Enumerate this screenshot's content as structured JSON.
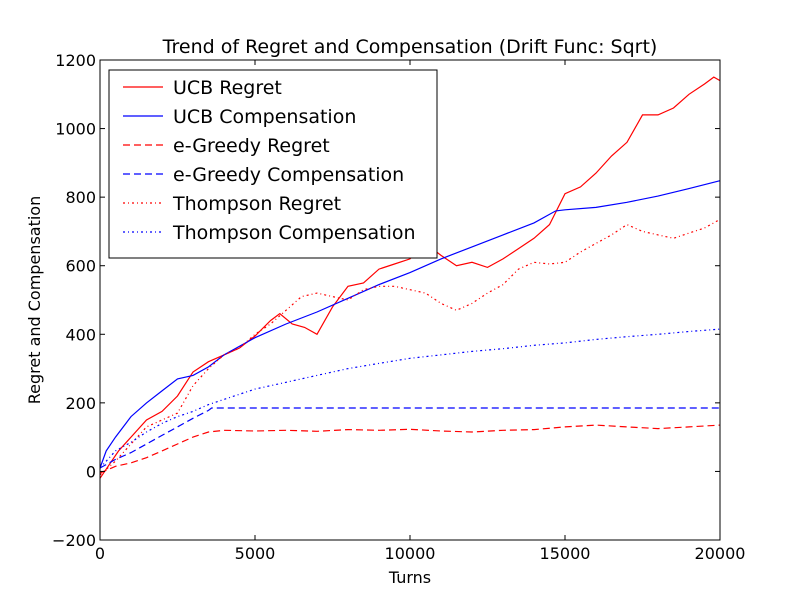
{
  "chart_data": {
    "type": "line",
    "title": "Trend of Regret and Compensation (Drift Func: Sqrt)",
    "xlabel": "Turns",
    "ylabel": "Regret and Compensation",
    "xlim": [
      0,
      20000
    ],
    "ylim": [
      -200,
      1200
    ],
    "xticks": [
      0,
      5000,
      10000,
      15000,
      20000
    ],
    "yticks": [
      -200,
      0,
      200,
      400,
      600,
      800,
      1000,
      1200
    ],
    "xtick_labels": [
      "0",
      "5000",
      "10000",
      "15000",
      "20000"
    ],
    "ytick_labels": [
      "−200",
      "0",
      "200",
      "400",
      "600",
      "800",
      "1000",
      "1200"
    ],
    "legend_position": "top-left",
    "series": [
      {
        "name": "UCB Regret",
        "color": "#ff0000",
        "dash": "solid",
        "x": [
          0,
          300,
          600,
          1000,
          1500,
          2000,
          2500,
          3000,
          3500,
          4000,
          4500,
          5000,
          5500,
          5800,
          6200,
          6600,
          7000,
          7500,
          8000,
          8500,
          9000,
          9500,
          10000,
          10500,
          11000,
          11500,
          12000,
          12500,
          13000,
          13500,
          14000,
          14500,
          15000,
          15500,
          16000,
          16500,
          17000,
          17500,
          18000,
          18500,
          19000,
          19500,
          19800,
          20000
        ],
        "values": [
          -20,
          20,
          60,
          100,
          150,
          175,
          220,
          290,
          320,
          340,
          360,
          395,
          440,
          460,
          430,
          420,
          400,
          480,
          540,
          550,
          590,
          605,
          620,
          665,
          630,
          600,
          610,
          595,
          620,
          650,
          680,
          720,
          810,
          830,
          870,
          920,
          960,
          1040,
          1040,
          1060,
          1100,
          1130,
          1150,
          1140
        ]
      },
      {
        "name": "UCB Compensation",
        "color": "#0000ff",
        "dash": "solid",
        "x": [
          0,
          200,
          500,
          1000,
          1500,
          2000,
          2500,
          3000,
          3500,
          4000,
          5000,
          6000,
          7000,
          8000,
          9000,
          10000,
          11000,
          12000,
          13000,
          14000,
          14700,
          15000,
          16000,
          17000,
          18000,
          19000,
          20000
        ],
        "values": [
          10,
          60,
          100,
          160,
          200,
          235,
          270,
          280,
          305,
          340,
          390,
          430,
          465,
          505,
          545,
          580,
          620,
          655,
          690,
          725,
          760,
          763,
          770,
          785,
          803,
          825,
          848
        ]
      },
      {
        "name": "e-Greedy Regret",
        "color": "#ff0000",
        "dash": "dashed",
        "x": [
          0,
          500,
          1000,
          1500,
          2000,
          2500,
          3000,
          3500,
          4000,
          5000,
          6000,
          7000,
          8000,
          9000,
          10000,
          11000,
          12000,
          13000,
          14000,
          15000,
          16000,
          17000,
          18000,
          19000,
          20000
        ],
        "values": [
          -5,
          15,
          25,
          40,
          60,
          80,
          100,
          115,
          120,
          118,
          120,
          117,
          122,
          120,
          123,
          118,
          115,
          120,
          122,
          130,
          135,
          130,
          125,
          130,
          135
        ]
      },
      {
        "name": "e-Greedy Compensation",
        "color": "#0000ff",
        "dash": "dashed",
        "x": [
          0,
          500,
          1000,
          1500,
          2000,
          2500,
          3000,
          3500,
          3600,
          5000,
          10000,
          15000,
          20000
        ],
        "values": [
          10,
          35,
          55,
          80,
          105,
          130,
          155,
          178,
          185,
          185,
          185,
          185,
          185
        ]
      },
      {
        "name": "Thompson Regret",
        "color": "#ff0000",
        "dash": "dashdot",
        "x": [
          0,
          500,
          1000,
          1500,
          2000,
          2500,
          3000,
          3500,
          4000,
          4500,
          5000,
          5500,
          6000,
          6500,
          7000,
          7500,
          8000,
          8500,
          9000,
          9500,
          10000,
          10500,
          11000,
          11500,
          12000,
          12500,
          13000,
          13500,
          14000,
          14500,
          15000,
          15500,
          16000,
          16500,
          17000,
          17500,
          18000,
          18500,
          19000,
          19500,
          20000
        ],
        "values": [
          -10,
          30,
          80,
          130,
          150,
          170,
          250,
          300,
          340,
          360,
          400,
          430,
          470,
          510,
          520,
          510,
          500,
          530,
          540,
          540,
          530,
          520,
          490,
          470,
          490,
          520,
          545,
          590,
          610,
          605,
          610,
          640,
          665,
          690,
          720,
          700,
          690,
          680,
          695,
          710,
          735
        ]
      },
      {
        "name": "Thompson Compensation",
        "color": "#0000ff",
        "dash": "dashdot",
        "x": [
          0,
          500,
          1000,
          1500,
          2000,
          2500,
          3000,
          3500,
          4000,
          5000,
          6000,
          7000,
          8000,
          9000,
          10000,
          11000,
          12000,
          13000,
          14000,
          15000,
          16000,
          17000,
          18000,
          19000,
          20000
        ],
        "values": [
          10,
          60,
          85,
          115,
          140,
          160,
          175,
          195,
          210,
          240,
          260,
          280,
          300,
          315,
          330,
          340,
          350,
          358,
          368,
          375,
          385,
          393,
          400,
          408,
          415
        ]
      }
    ]
  }
}
